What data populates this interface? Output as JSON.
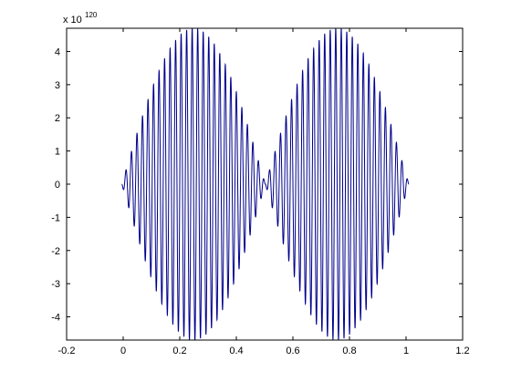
{
  "chart_data": {
    "type": "line",
    "title": "",
    "xlabel": "",
    "ylabel": "",
    "y_exponent_label": {
      "base": "x 10",
      "power": "120"
    },
    "xlim": [
      -0.2,
      1.2
    ],
    "ylim": [
      -4.7,
      4.7
    ],
    "x_ticks": [
      -0.2,
      0,
      0.2,
      0.4,
      0.6,
      0.8,
      1,
      1.2
    ],
    "x_tick_labels": [
      "-0.2",
      "0",
      "0.2",
      "0.4",
      "0.6",
      "0.8",
      "1",
      "1.2"
    ],
    "y_ticks": [
      -4,
      -3,
      -2,
      -1,
      0,
      1,
      2,
      3,
      4
    ],
    "y_tick_labels": [
      "-4",
      "-3",
      "-2",
      "-1",
      "0",
      "1",
      "2",
      "3",
      "4"
    ],
    "grid": false,
    "series": [
      {
        "color": "#00008b",
        "description_free_params": {
          "x_start": -0.005,
          "x_end": 1.01,
          "amplitude": 4.7,
          "envelope_cycles": 2,
          "oscillation_cycles": 52
        }
      }
    ]
  }
}
